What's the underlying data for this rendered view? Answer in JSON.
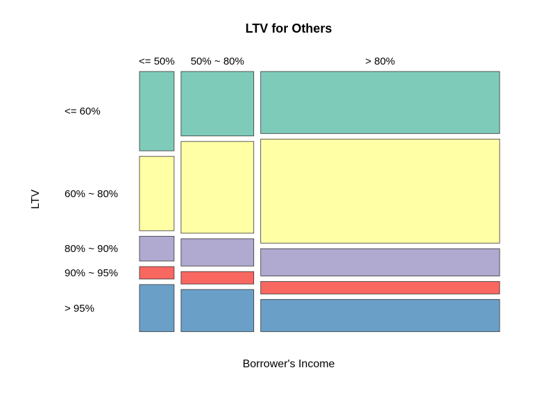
{
  "chart_data": {
    "type": "mosaic",
    "title": "LTV for Others",
    "xlabel": "Borrower's Income",
    "ylabel": "LTV",
    "x_categories": [
      "<= 50%",
      "50% ~ 80%",
      "> 80%"
    ],
    "x_shares": [
      0.1,
      0.21,
      0.69
    ],
    "y_categories": [
      "<= 60%",
      "60% ~ 80%",
      "80% ~ 90%",
      "90% ~ 95%",
      "> 95%"
    ],
    "cells": [
      [
        0.32,
        0.3,
        0.1,
        0.05,
        0.19
      ],
      [
        0.26,
        0.37,
        0.11,
        0.05,
        0.17
      ],
      [
        0.25,
        0.42,
        0.11,
        0.05,
        0.13
      ]
    ],
    "colors": [
      "#7fcbba",
      "#ffffa6",
      "#b0a9d0",
      "#f96761",
      "#6aa0c8"
    ]
  }
}
